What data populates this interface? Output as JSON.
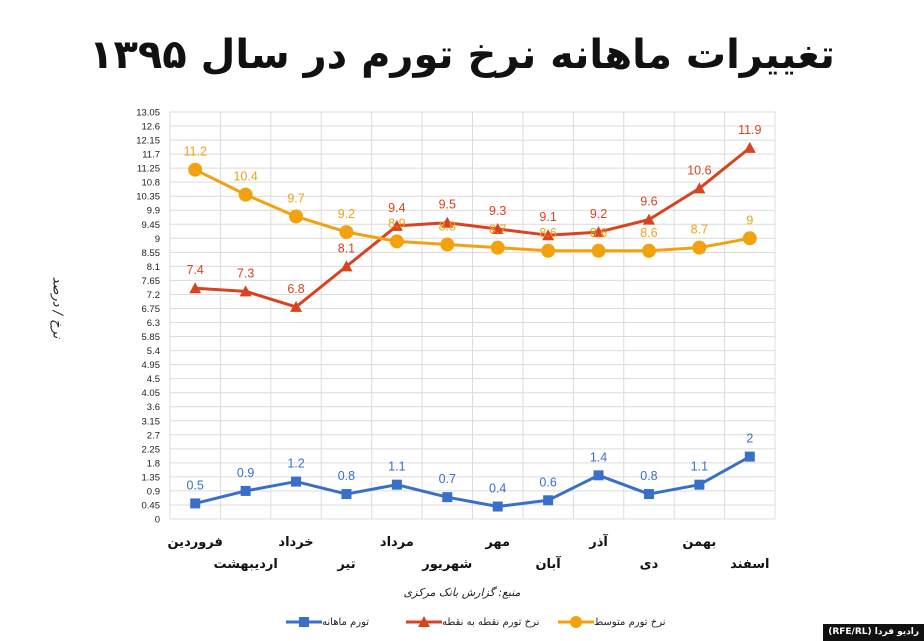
{
  "chart_data": {
    "type": "line",
    "title": "تغییرات ماهانه نرخ تورم در سال ۱۳۹۵",
    "ylabel": "نرخ / درصد",
    "source": "منبع: گزارش بانک مرکزی",
    "categories": [
      "فروردین",
      "اردیبهشت",
      "خرداد",
      "تیر",
      "مرداد",
      "شهریور",
      "مهر",
      "آبان",
      "آذر",
      "دی",
      "بهمن",
      "اسفند"
    ],
    "yticks": [
      "0",
      "0.45",
      "0.9",
      "1.35",
      "1.8",
      "2.25",
      "2.7",
      "3.15",
      "3.6",
      "4.05",
      "4.5",
      "4.95",
      "5.4",
      "5.85",
      "6.3",
      "6.75",
      "7.2",
      "7.65",
      "8.1",
      "8.55",
      "9",
      "9.45",
      "9.9",
      "10.35",
      "10.8",
      "11.25",
      "11.7",
      "12.15",
      "12.6",
      "13.05"
    ],
    "ylim": [
      0,
      13.05
    ],
    "grid": true,
    "legend_position": "bottom",
    "series": [
      {
        "name": "تورم ماهانه",
        "color": "#3a6fc9",
        "marker": "square",
        "values": [
          0.5,
          0.9,
          1.2,
          0.8,
          1.1,
          0.7,
          0.4,
          0.6,
          1.4,
          0.8,
          1.1,
          2
        ],
        "labels": [
          "0.5",
          "0.9",
          "1.2",
          "0.8",
          "1.1",
          "0.7",
          "0.4",
          "0.6",
          "1.4",
          "0.8",
          "1.1",
          "2"
        ]
      },
      {
        "name": "نرخ تورم نقطه به نقطه",
        "color": "#d9431f",
        "marker": "triangle",
        "values": [
          7.4,
          7.3,
          6.8,
          8.1,
          9.4,
          9.5,
          9.3,
          9.1,
          9.2,
          9.6,
          10.6,
          11.9
        ],
        "labels": [
          "7.4",
          "7.3",
          "6.8",
          "8.1",
          "9.4",
          "9.5",
          "9.3",
          "9.1",
          "9.2",
          "9.6",
          "10.6",
          "11.9"
        ]
      },
      {
        "name": "نرخ تورم متوسط",
        "color": "#f2a20f",
        "marker": "circle",
        "values": [
          11.2,
          10.4,
          9.7,
          9.2,
          8.9,
          8.8,
          8.7,
          8.6,
          8.6,
          8.6,
          8.7,
          9
        ],
        "labels": [
          "11.2",
          "10.4",
          "9.7",
          "9.2",
          "8.9",
          "8.8",
          "8.7",
          "8.6",
          "8.6",
          "8.6",
          "8.7",
          "9"
        ]
      }
    ]
  },
  "credit": "رادیو فردا (RFE/RL)"
}
